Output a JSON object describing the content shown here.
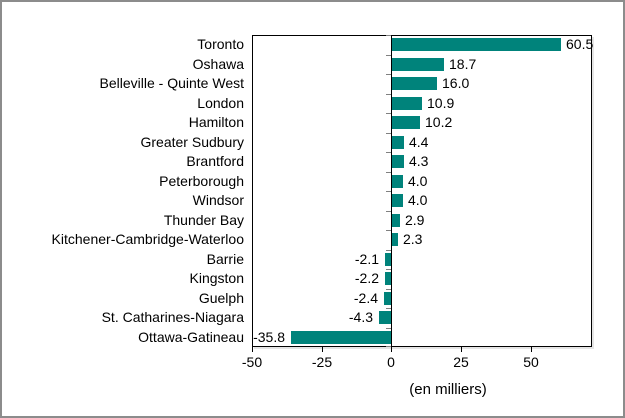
{
  "frame": {
    "background": "#ffffff",
    "border_color": "#8C8C8C"
  },
  "chart_data": {
    "type": "bar",
    "orientation": "horizontal",
    "xlabel": "(en milliers)",
    "categories": [
      "Toronto",
      "Oshawa",
      "Belleville - Quinte West",
      "London",
      "Hamilton",
      "Greater Sudbury",
      "Brantford",
      "Peterborough",
      "Windsor",
      "Thunder Bay",
      "Kitchener-Cambridge-Waterloo",
      "Barrie",
      "Kingston",
      "Guelph",
      "St. Catharines-Niagara",
      "Ottawa-Gatineau"
    ],
    "values": [
      60.5,
      18.7,
      16.0,
      10.9,
      10.2,
      4.4,
      4.3,
      4.0,
      4.0,
      2.9,
      2.3,
      -2.1,
      -2.2,
      -2.4,
      -4.3,
      -35.8
    ],
    "value_labels": [
      "60.5",
      "18.7",
      "16.0",
      "10.9",
      "10.2",
      "4.4",
      "4.3",
      "4.0",
      "4.0",
      "2.9",
      "2.3",
      "-2.1",
      "-2.2",
      "-2.4",
      "-4.3",
      "-35.8"
    ],
    "xlim": [
      -50,
      72
    ],
    "xticks": [
      -50,
      -25,
      0,
      25,
      50
    ],
    "xtick_labels": [
      "-50",
      "-25",
      "0",
      "25",
      "50"
    ],
    "grid": false,
    "legend": "none",
    "bar_color": "#00837B",
    "axis_color": "#000000",
    "category_tick_color": "#808080",
    "text_color": "#000000"
  }
}
